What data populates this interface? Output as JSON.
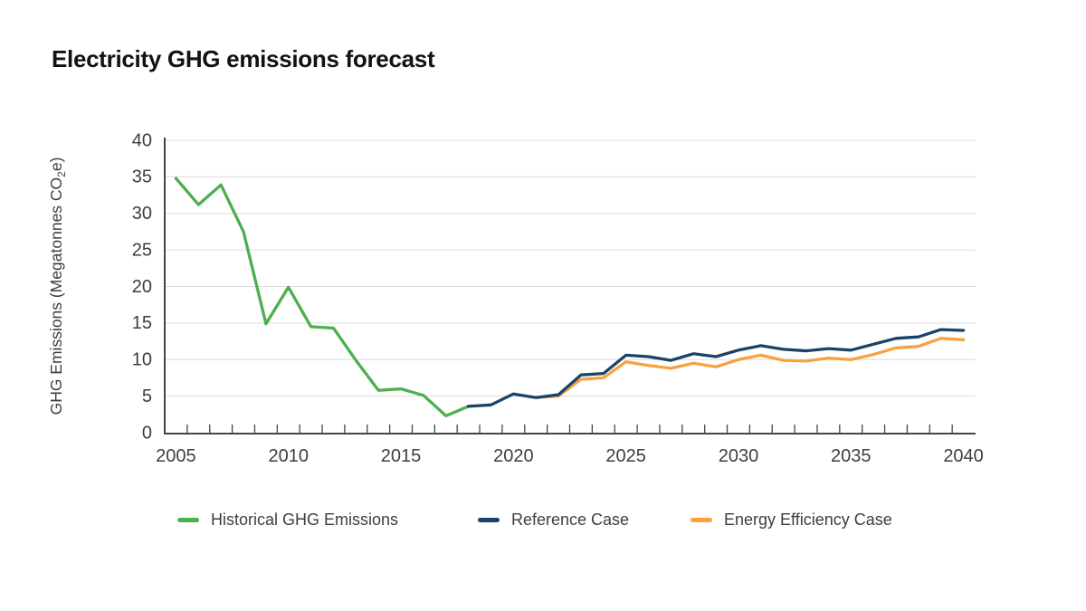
{
  "page_title": "Electricity GHG emissions forecast",
  "colors": {
    "historical": "#4CB04E",
    "reference": "#1C4269",
    "efficiency": "#F9A13F",
    "gridline": "#DCDCDC",
    "axis": "#454545",
    "tick_text": "#3E3E3E",
    "title_text": "#121212",
    "background": "#FFFFFF"
  },
  "chart_data": {
    "type": "line",
    "title": "Electricity GHG emissions forecast",
    "xlabel": "",
    "ylabel": "GHG Emissions (Megatonnes CO₂e)",
    "ylabel_parts": [
      "GHG Emissions (Megatonnes CO",
      "2",
      "e)"
    ],
    "xlim": [
      2004.5,
      2040.5
    ],
    "ylim": [
      0,
      40
    ],
    "y_ticks": [
      0,
      5,
      10,
      15,
      20,
      25,
      30,
      35,
      40
    ],
    "x_tick_labels": [
      2005,
      2010,
      2015,
      2020,
      2025,
      2030,
      2035,
      2040
    ],
    "minor_x_ticks": {
      "start": 2005.5,
      "end": 2039.5,
      "step": 1
    },
    "grid": "horizontal-only",
    "legend_position": "bottom",
    "series": [
      {
        "name": "Historical GHG Emissions",
        "color": "#4CB04E",
        "x": [
          2005,
          2006,
          2007,
          2008,
          2009,
          2010,
          2011,
          2012,
          2013,
          2014,
          2015,
          2016,
          2017,
          2018
        ],
        "values": [
          34.8,
          31.2,
          33.9,
          27.5,
          14.9,
          19.9,
          14.5,
          14.3,
          9.9,
          5.8,
          6.0,
          5.1,
          2.3,
          3.6
        ]
      },
      {
        "name": "Reference Case",
        "color": "#1C4269",
        "x": [
          2018,
          2019,
          2020,
          2021,
          2022,
          2023,
          2024,
          2025,
          2026,
          2027,
          2028,
          2029,
          2030,
          2031,
          2032,
          2033,
          2034,
          2035,
          2036,
          2037,
          2038,
          2039,
          2040
        ],
        "values": [
          3.6,
          3.8,
          5.3,
          4.8,
          5.2,
          7.9,
          8.1,
          10.6,
          10.4,
          9.9,
          10.8,
          10.4,
          11.3,
          11.9,
          11.4,
          11.2,
          11.5,
          11.3,
          12.1,
          12.9,
          13.1,
          14.1,
          14.0
        ]
      },
      {
        "name": "Energy Efficiency Case",
        "color": "#F9A13F",
        "x": [
          2021,
          2022,
          2023,
          2024,
          2025,
          2026,
          2027,
          2028,
          2029,
          2030,
          2031,
          2032,
          2033,
          2034,
          2035,
          2036,
          2037,
          2038,
          2039,
          2040
        ],
        "values": [
          4.8,
          5.0,
          7.3,
          7.5,
          9.7,
          9.2,
          8.8,
          9.5,
          9.0,
          10.0,
          10.6,
          9.9,
          9.8,
          10.2,
          10.0,
          10.7,
          11.6,
          11.8,
          12.9,
          12.7
        ]
      }
    ]
  },
  "legend": {
    "items": [
      {
        "label": "Historical GHG Emissions",
        "color": "#4CB04E"
      },
      {
        "label": "Reference Case",
        "color": "#1C4269"
      },
      {
        "label": "Energy Efficiency Case",
        "color": "#F9A13F"
      }
    ]
  }
}
